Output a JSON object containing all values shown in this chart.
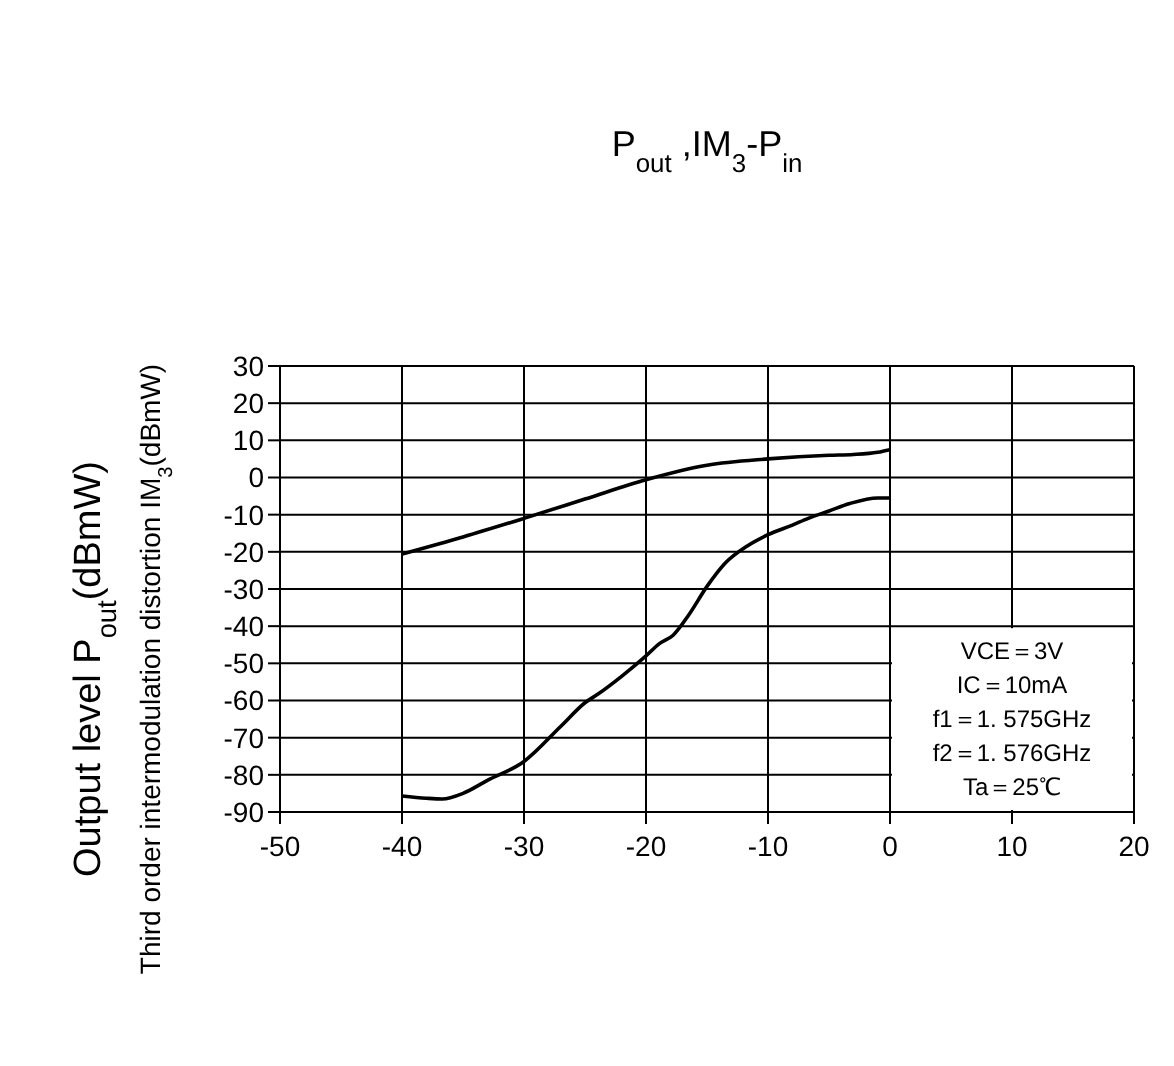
{
  "chart_data": {
    "type": "line",
    "title": "P$_{out}$ ,IM$_{3}$-P$_{in}$",
    "ylabel": "Output level P$_{out}$(dBmW)\nThird order intermodulation distortion IM$_{3}$(dBmW)",
    "xlim": [
      -50,
      20
    ],
    "xticks": [
      -50,
      -40,
      -30,
      -20,
      -10,
      0,
      10,
      20
    ],
    "ylim": [
      -90,
      30
    ],
    "yticks": [
      30,
      20,
      10,
      0,
      -10,
      -20,
      -30,
      -40,
      -50,
      -60,
      -70,
      -80,
      -90
    ],
    "grid": true,
    "marker": "none",
    "line_style": "solid",
    "series": [
      {
        "color": "#000000",
        "x": [
          -40,
          -35,
          -30,
          -25,
          -20,
          -15,
          -10,
          -5,
          -3,
          -1,
          0
        ],
        "values": [
          -20.6,
          -16,
          -11,
          -5.8,
          -0.6,
          3.3,
          5,
          6,
          6.2,
          6.8,
          7.5
        ]
      },
      {
        "color": "#000000",
        "x": [
          -40,
          -38,
          -36.7,
          -35,
          -33,
          -30,
          -27,
          -25,
          -23.9,
          -22,
          -20,
          -18.9,
          -17.8,
          -16.5,
          -15,
          -13.5,
          -11.7,
          -10,
          -8,
          -6.7,
          -5,
          -3.3,
          -1,
          0
        ],
        "values": [
          -85.7,
          -86.3,
          -86.5,
          -85,
          -81.5,
          -76.4,
          -67,
          -60.6,
          -58.2,
          -53.5,
          -48,
          -44.7,
          -42.5,
          -37,
          -29.3,
          -23,
          -18.4,
          -15.4,
          -12.8,
          -11,
          -9,
          -7,
          -5.5,
          -5.5
        ]
      }
    ],
    "annotations": [
      "VCE＝3V",
      "IC＝10mA",
      "f1＝1. 575GHz",
      "f2＝1. 576GHz",
      "Ta＝25℃"
    ]
  }
}
